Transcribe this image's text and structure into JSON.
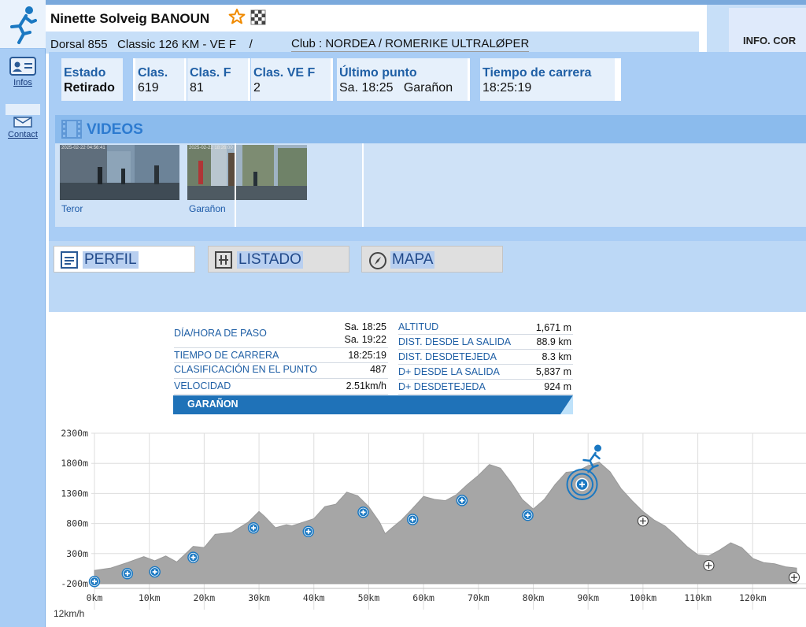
{
  "sidebar": {
    "items": [
      {
        "label": "Infos",
        "icon": "id-card-icon"
      },
      {
        "label": "Contact",
        "icon": "envelope-icon"
      }
    ]
  },
  "header": {
    "runner_name": "Ninette Solveig BANOUN",
    "dorsal_line": "Dorsal 855   Classic 126 KM - VE F    /",
    "club": "Club : NORDEA / ROMERIKE ULTRALØPER",
    "info_panel": "INFO. COR"
  },
  "stats": [
    {
      "label": "Estado",
      "value": "Retirado",
      "bold": true
    },
    {
      "label": "Clas.",
      "value": "619"
    },
    {
      "label": "Clas. F",
      "value": "81"
    },
    {
      "label": "Clas. VE F",
      "value": "2"
    },
    {
      "label": "Último punto",
      "value": "Sa. 18:25   Garañon"
    },
    {
      "label": "Tiempo de carrera",
      "value": "18:25:19"
    }
  ],
  "videos": {
    "title": "VIDEOS",
    "items": [
      {
        "label": "Teror",
        "stamp": "2025-02-22 04:56:41"
      },
      {
        "label": "Garañon",
        "stamp": "2025-02-22 18:26:00"
      }
    ]
  },
  "tabs": [
    {
      "label": "PERFIL",
      "active": true
    },
    {
      "label": "LISTADO",
      "active": false
    },
    {
      "label": "MAPA",
      "active": false
    }
  ],
  "point_info": {
    "left": [
      {
        "label": "DÍA/HORA DE PASO",
        "value": "Sa. 18:25",
        "value2": "Sa. 19:22"
      },
      {
        "label": "TIEMPO DE CARRERA",
        "value": "18:25:19"
      },
      {
        "label": "CLASIFICACIÓN EN EL PUNTO",
        "value": "487"
      },
      {
        "label": "VELOCIDAD",
        "value": "2.51km/h"
      }
    ],
    "right": [
      {
        "label": "ALTITUD",
        "value": "1,671 m"
      },
      {
        "label": "DIST. DESDE LA SALIDA",
        "value": "88.9 km"
      },
      {
        "label": "DIST. DESDETEJEDA",
        "value": "8.3 km"
      },
      {
        "label": "D+ DESDE LA SALIDA",
        "value": "5,837 m"
      },
      {
        "label": "D+ DESDETEJEDA",
        "value": "924 m"
      }
    ],
    "station": "GARAÑON"
  },
  "chart_data": {
    "type": "area",
    "xlabel": "",
    "ylabel": "",
    "xlim": [
      0,
      128
    ],
    "ylim": [
      -200,
      2300
    ],
    "x_ticks": [
      "0km",
      "10km",
      "20km",
      "30km",
      "40km",
      "50km",
      "60km",
      "70km",
      "80km",
      "90km",
      "100km",
      "110km",
      "120km"
    ],
    "y_ticks": [
      "2300m",
      "1800m",
      "1300m",
      "800m",
      "300m",
      "-200m"
    ],
    "profile_km": [
      0,
      3,
      6,
      9,
      11,
      13,
      15,
      17,
      18,
      20,
      22,
      25,
      28,
      30,
      31,
      33,
      35,
      36,
      38,
      40,
      42,
      44,
      46,
      48,
      50,
      52,
      53,
      54,
      56,
      58,
      60,
      62,
      64,
      66,
      68,
      70,
      72,
      74,
      76,
      78,
      80,
      82,
      84,
      86,
      88,
      90,
      92,
      94,
      96,
      98,
      100,
      102,
      104,
      106,
      108,
      110,
      112,
      114,
      116,
      118,
      120,
      122,
      124,
      126,
      128
    ],
    "profile_elev": [
      20,
      60,
      150,
      250,
      180,
      260,
      160,
      330,
      420,
      400,
      620,
      650,
      820,
      1000,
      920,
      730,
      780,
      760,
      820,
      880,
      1080,
      1120,
      1320,
      1260,
      1080,
      820,
      630,
      710,
      860,
      1050,
      1250,
      1200,
      1180,
      1280,
      1450,
      1600,
      1780,
      1720,
      1480,
      1200,
      1040,
      1200,
      1450,
      1650,
      1671,
      1760,
      1820,
      1660,
      1380,
      1180,
      1000,
      860,
      760,
      600,
      420,
      280,
      260,
      360,
      480,
      400,
      220,
      150,
      130,
      80,
      60
    ],
    "checkpoints_passed_km": [
      0,
      6,
      11,
      18,
      29,
      39,
      49,
      58,
      67,
      79,
      88.9
    ],
    "checkpoints_remaining_km": [
      100,
      112,
      128
    ],
    "current_km": 88.9,
    "grid": true,
    "colors": {
      "fill": "#a6a6a6",
      "grid": "#dddddd",
      "marker": "#1a78c2"
    },
    "speed_axis_label": "12km/h"
  }
}
